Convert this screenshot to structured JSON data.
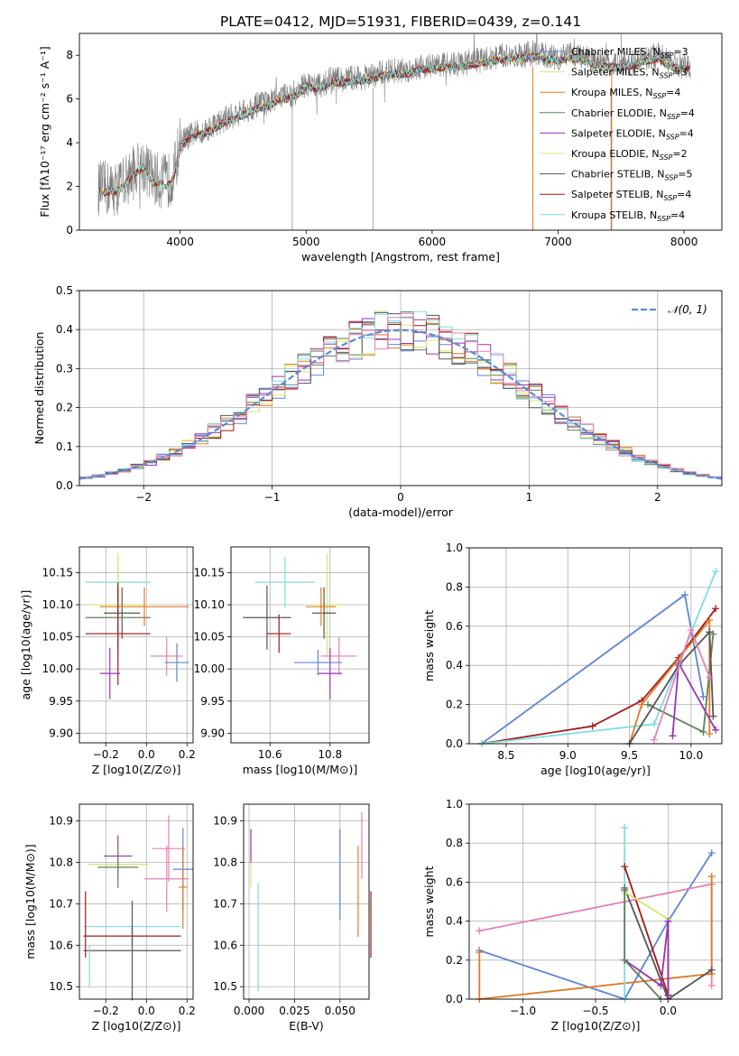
{
  "title": "PLATE=0412, MJD=51931, FIBERID=0439, z=0.141",
  "colors": {
    "chabrier_miles": "#5e86d4",
    "salpeter_miles": "#e8e26a",
    "kroupa_miles": "#e07b27",
    "chabrier_elodie": "#5f7f5a",
    "salpeter_elodie": "#9934b6",
    "kroupa_elodie": "#d1ea6c",
    "chabrier_stelib": "#555555",
    "salpeter_stelib": "#a41818",
    "kroupa_stelib": "#7fdde0",
    "pink": "#e580b4",
    "data": "#808080"
  },
  "chart_data": [
    {
      "panel": "spectrum",
      "type": "line",
      "title": "PLATE=0412, MJD=51931, FIBERID=0439, z=0.141",
      "xlabel": "wavelength [Angstrom, rest frame]",
      "ylabel": "Flux [fλ10⁻¹⁷ erg cm⁻² s⁻¹ A⁻¹]",
      "xlim": [
        3200,
        8300
      ],
      "ylim": [
        0,
        9
      ],
      "xticks": [
        "4000",
        "5000",
        "6000",
        "7000",
        "8000"
      ],
      "yticks": [
        "0",
        "2",
        "4",
        "6",
        "8"
      ],
      "legend_position": "upper-right",
      "legend": [
        "Chabrier MILES, NSSP=3",
        "Salpeter MILES, NSSP=3",
        "Kroupa MILES, NSSP=4",
        "Chabrier ELODIE, NSSP=4",
        "Salpeter ELODIE, NSSP=4",
        "Kroupa ELODIE, NSSP=2",
        "Chabrier STELIB, NSSP=5",
        "Salpeter STELIB, NSSP=4",
        "Kroupa STELIB, NSSP=4"
      ],
      "continuum": {
        "x": [
          3350,
          3500,
          3600,
          3700,
          3800,
          3900,
          3950,
          4000,
          4100,
          4200,
          4300,
          4400,
          4500,
          4600,
          4700,
          4800,
          4900,
          5000,
          5100,
          5200,
          5300,
          5400,
          5500,
          5600,
          5700,
          5800,
          5900,
          6000,
          6100,
          6200,
          6300,
          6400,
          6500,
          6600,
          6700,
          6800,
          6900,
          7000,
          7100,
          7200,
          7300,
          7400,
          7500,
          7600,
          7700,
          7800,
          7900,
          8000,
          8050
        ],
        "y": [
          1.9,
          1.9,
          2.5,
          3.0,
          2.3,
          2.2,
          2.6,
          4.0,
          4.4,
          4.6,
          4.9,
          5.2,
          5.4,
          5.7,
          5.8,
          6.1,
          6.2,
          6.7,
          6.6,
          6.9,
          6.9,
          7.0,
          7.0,
          7.2,
          7.3,
          7.3,
          7.5,
          7.5,
          7.6,
          7.6,
          7.7,
          7.8,
          7.9,
          8.0,
          8.0,
          8.1,
          8.0,
          7.9,
          8.0,
          7.9,
          7.7,
          7.6,
          7.6,
          7.7,
          7.9,
          8.0,
          7.6,
          7.5,
          7.5
        ]
      }
    },
    {
      "panel": "residual_histogram",
      "type": "line",
      "xlabel": "(data-model)/error",
      "ylabel": "Normed distribution",
      "xlim": [
        -2.5,
        2.5
      ],
      "ylim": [
        0,
        0.5
      ],
      "xticks": [
        "−2",
        "−1",
        "0",
        "1",
        "2"
      ],
      "yticks": [
        "0.0",
        "0.1",
        "0.2",
        "0.3",
        "0.4",
        "0.5"
      ],
      "legend": [
        "𝒩(0, 1)"
      ],
      "legend_position": "upper-right",
      "grid": true
    },
    {
      "panel": "age_vs_Z",
      "type": "scatter",
      "xlabel": "Z [log10(Z/Z⊙)]",
      "ylabel": "age  [log10(age/yr)]",
      "xlim": [
        -0.33,
        0.23
      ],
      "ylim": [
        9.885,
        10.19
      ],
      "xticks": [
        "−0.2",
        "0.0",
        "0.2"
      ],
      "yticks": [
        "9.90",
        "9.95",
        "10.00",
        "10.05",
        "10.10",
        "10.15"
      ],
      "points": [
        {
          "x": -0.14,
          "y": 10.135,
          "xerr": 0.16,
          "yerr": 0.04,
          "color": "kroupa_stelib"
        },
        {
          "x": -0.14,
          "y": 10.1,
          "xerr": 0.15,
          "yerr": 0.08,
          "color": "kroupa_elodie"
        },
        {
          "x": -0.12,
          "y": 10.087,
          "xerr": 0.09,
          "yerr": 0.04,
          "color": "chabrier_stelib"
        },
        {
          "x": -0.14,
          "y": 10.08,
          "xerr": 0.16,
          "yerr": 0.05,
          "color": "chabrier_elodie"
        },
        {
          "x": -0.01,
          "y": 10.097,
          "xerr": 0.22,
          "yerr": 0.03,
          "color": "kroupa_miles"
        },
        {
          "x": -0.14,
          "y": 10.055,
          "xerr": 0.16,
          "yerr": 0.08,
          "color": "salpeter_stelib"
        },
        {
          "x": 0.1,
          "y": 10.02,
          "xerr": 0.08,
          "yerr": 0.03,
          "color": "pink"
        },
        {
          "x": 0.15,
          "y": 10.01,
          "xerr": 0.06,
          "yerr": 0.03,
          "color": "chabrier_miles"
        },
        {
          "x": -0.18,
          "y": 9.993,
          "xerr": 0.05,
          "yerr": 0.04,
          "color": "salpeter_elodie"
        }
      ]
    },
    {
      "panel": "age_vs_mass",
      "type": "scatter",
      "xlabel": "mass [log10(M/M⊙)]",
      "xlim": [
        10.47,
        10.93
      ],
      "ylim": [
        9.885,
        10.19
      ],
      "xticks": [
        "10.6",
        "10.8"
      ],
      "yticks": [
        "9.90",
        "9.95",
        "10.00",
        "10.05",
        "10.10",
        "10.15"
      ],
      "points": [
        {
          "x": 10.65,
          "y": 10.135,
          "xerr": 0.1,
          "yerr": 0.04,
          "color": "kroupa_stelib"
        },
        {
          "x": 10.79,
          "y": 10.1,
          "xerr": 0.05,
          "yerr": 0.08,
          "color": "kroupa_elodie"
        },
        {
          "x": 10.78,
          "y": 10.087,
          "xerr": 0.04,
          "yerr": 0.04,
          "color": "chabrier_stelib"
        },
        {
          "x": 10.59,
          "y": 10.08,
          "xerr": 0.08,
          "yerr": 0.05,
          "color": "chabrier_stelib"
        },
        {
          "x": 10.77,
          "y": 10.097,
          "xerr": 0.05,
          "yerr": 0.03,
          "color": "kroupa_miles"
        },
        {
          "x": 10.63,
          "y": 10.055,
          "xerr": 0.04,
          "yerr": 0.03,
          "color": "salpeter_stelib"
        },
        {
          "x": 10.83,
          "y": 10.02,
          "xerr": 0.06,
          "yerr": 0.03,
          "color": "pink"
        },
        {
          "x": 10.76,
          "y": 10.01,
          "xerr": 0.08,
          "yerr": 0.02,
          "color": "chabrier_miles"
        },
        {
          "x": 10.8,
          "y": 9.993,
          "xerr": 0.04,
          "yerr": 0.04,
          "color": "salpeter_elodie"
        }
      ]
    },
    {
      "panel": "massweight_vs_age",
      "type": "line",
      "xlabel": "age  [log10(age/yr)]",
      "ylabel": "mass weight",
      "xlim": [
        8.2,
        10.25
      ],
      "ylim": [
        0,
        1.0
      ],
      "xticks": [
        "8.5",
        "9.0",
        "9.5",
        "10.0"
      ],
      "yticks": [
        "0.0",
        "0.2",
        "0.4",
        "0.6",
        "0.8",
        "1.0"
      ],
      "grid": true,
      "series": [
        {
          "color": "chabrier_miles",
          "x": [
            8.3,
            9.95,
            10.1
          ],
          "y": [
            0.0,
            0.76,
            0.24
          ]
        },
        {
          "color": "salpeter_stelib",
          "x": [
            8.3,
            9.2,
            9.6,
            9.9,
            10.2
          ],
          "y": [
            0.0,
            0.09,
            0.22,
            0.44,
            0.69
          ]
        },
        {
          "color": "kroupa_stelib",
          "x": [
            8.3,
            9.7,
            10.2
          ],
          "y": [
            0.0,
            0.1,
            0.88
          ]
        },
        {
          "color": "kroupa_miles",
          "x": [
            9.5,
            9.6,
            10.15,
            10.15
          ],
          "y": [
            0.0,
            0.2,
            0.63,
            0.05
          ]
        },
        {
          "color": "chabrier_elodie",
          "x": [
            9.65,
            10.1,
            10.18
          ],
          "y": [
            0.2,
            0.06,
            0.56
          ]
        },
        {
          "color": "salpeter_elodie",
          "x": [
            9.85,
            9.9,
            10.2
          ],
          "y": [
            0.04,
            0.41,
            0.07
          ]
        },
        {
          "color": "chabrier_stelib",
          "x": [
            9.5,
            9.9,
            10.15,
            10.18
          ],
          "y": [
            0.0,
            0.4,
            0.57,
            0.14
          ]
        },
        {
          "color": "pink",
          "x": [
            9.7,
            10.0,
            10.15
          ],
          "y": [
            0.02,
            0.58,
            0.34
          ]
        }
      ]
    },
    {
      "panel": "mass_vs_Z",
      "type": "scatter",
      "xlabel": "Z [log10(Z/Z⊙)]",
      "ylabel": "mass [log10(M/M⊙)]",
      "xlim": [
        -0.33,
        0.23
      ],
      "ylim": [
        10.47,
        10.94
      ],
      "xticks": [
        "−0.2",
        "0.0",
        "0.2"
      ],
      "yticks": [
        "10.5",
        "10.6",
        "10.7",
        "10.8",
        "10.9"
      ],
      "points": [
        {
          "x": 0.11,
          "y": 10.833,
          "xerr": 0.08,
          "yerr": 0.08,
          "color": "pink"
        },
        {
          "x": -0.14,
          "y": 10.815,
          "xerr": 0.07,
          "yerr": 0.05,
          "color": "salpeter_elodie"
        },
        {
          "x": 0.18,
          "y": 10.783,
          "xerr": 0.05,
          "yerr": 0.1,
          "color": "chabrier_miles"
        },
        {
          "x": -0.14,
          "y": 10.795,
          "xerr": 0.15,
          "yerr": 0.04,
          "color": "kroupa_elodie"
        },
        {
          "x": -0.14,
          "y": 10.788,
          "xerr": 0.1,
          "yerr": 0.05,
          "color": "chabrier_elodie"
        },
        {
          "x": 0.1,
          "y": 10.76,
          "xerr": 0.11,
          "yerr": 0.08,
          "color": "pink"
        },
        {
          "x": 0.18,
          "y": 10.74,
          "xerr": 0.02,
          "yerr": 0.1,
          "color": "kroupa_miles"
        },
        {
          "x": -0.07,
          "y": 10.645,
          "xerr": 0.24,
          "yerr": 0.02,
          "color": "kroupa_stelib"
        },
        {
          "x": -0.07,
          "y": 10.622,
          "xerr": 0.24,
          "yerr": 0.02,
          "color": "salpeter_stelib"
        },
        {
          "x": -0.07,
          "y": 10.587,
          "xerr": 0.24,
          "yerr": 0.12,
          "color": "chabrier_stelib"
        },
        {
          "x": -0.3,
          "y": 10.65,
          "xerr": 0.0,
          "yerr": 0.08,
          "color": "salpeter_stelib"
        },
        {
          "x": -0.28,
          "y": 10.55,
          "xerr": 0.0,
          "yerr": 0.05,
          "color": "kroupa_stelib"
        }
      ]
    },
    {
      "panel": "mass_vs_ebv",
      "type": "scatter",
      "xlabel": "E(B-V)",
      "xlim": [
        -0.003,
        0.066
      ],
      "ylim": [
        10.47,
        10.94
      ],
      "xticks": [
        "0.000",
        "0.025",
        "0.050"
      ],
      "yticks": [
        "10.5",
        "10.6",
        "10.7",
        "10.8",
        "10.9"
      ],
      "points": [
        {
          "x": 0.001,
          "y": 10.8,
          "yerr": 0.06,
          "color": "kroupa_elodie"
        },
        {
          "x": 0.001,
          "y": 10.84,
          "yerr": 0.04,
          "color": "salpeter_elodie"
        },
        {
          "x": 0.005,
          "y": 10.62,
          "yerr": 0.13,
          "color": "kroupa_stelib"
        },
        {
          "x": 0.05,
          "y": 10.77,
          "yerr": 0.11,
          "color": "chabrier_miles"
        },
        {
          "x": 0.06,
          "y": 10.73,
          "yerr": 0.11,
          "color": "kroupa_miles"
        },
        {
          "x": 0.062,
          "y": 10.84,
          "yerr": 0.08,
          "color": "pink"
        },
        {
          "x": 0.067,
          "y": 10.65,
          "yerr": 0.08,
          "color": "salpeter_stelib"
        }
      ]
    },
    {
      "panel": "massweight_vs_Z",
      "type": "line",
      "xlabel": "Z [log10(Z/Z⊙)]",
      "ylabel": "mass weight",
      "xlim": [
        -1.37,
        0.37
      ],
      "ylim": [
        0,
        1.0
      ],
      "xticks": [
        "−1.0",
        "−0.5",
        "0.0"
      ],
      "yticks": [
        "0.0",
        "0.2",
        "0.4",
        "0.6",
        "0.8",
        "1.0"
      ],
      "grid": true,
      "series": [
        {
          "color": "chabrier_miles",
          "x": [
            -1.3,
            -0.3,
            0.0,
            0.3
          ],
          "y": [
            0.25,
            0.0,
            0.4,
            0.75
          ]
        },
        {
          "color": "pink",
          "x": [
            -1.3,
            0.3,
            0.3
          ],
          "y": [
            0.35,
            0.59,
            0.07
          ]
        },
        {
          "color": "kroupa_miles",
          "x": [
            -1.3,
            -1.3,
            0.3,
            0.3
          ],
          "y": [
            0.24,
            0.0,
            0.13,
            0.63
          ]
        },
        {
          "color": "kroupa_stelib",
          "x": [
            -0.3,
            -0.3
          ],
          "y": [
            0.88,
            0.0
          ]
        },
        {
          "color": "salpeter_stelib",
          "x": [
            -0.3,
            0.0,
            0.0
          ],
          "y": [
            0.68,
            0.02,
            0.4
          ]
        },
        {
          "color": "chabrier_stelib",
          "x": [
            -0.3,
            0.0,
            0.3
          ],
          "y": [
            0.57,
            0.0,
            0.15
          ]
        },
        {
          "color": "kroupa_elodie",
          "x": [
            -0.3,
            0.0
          ],
          "y": [
            0.55,
            0.41
          ]
        },
        {
          "color": "salpeter_elodie",
          "x": [
            -0.3,
            -0.05,
            0.0,
            0.0
          ],
          "y": [
            0.2,
            0.07,
            0.4,
            0.0
          ]
        },
        {
          "color": "chabrier_elodie",
          "x": [
            -0.3,
            -0.3,
            -0.05
          ],
          "y": [
            0.56,
            0.2,
            0.0
          ]
        }
      ]
    }
  ]
}
